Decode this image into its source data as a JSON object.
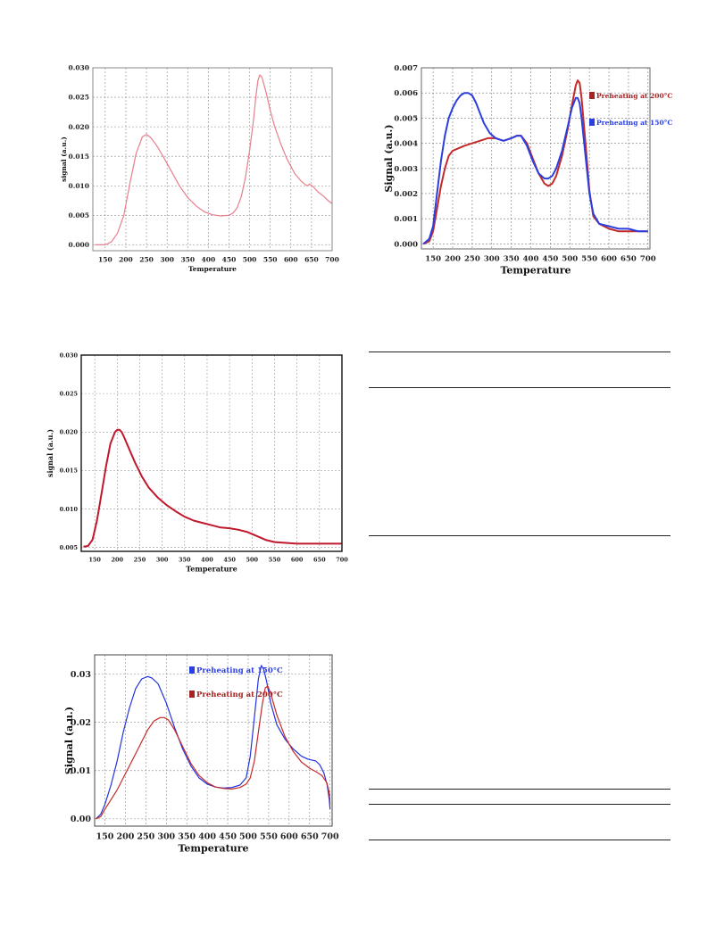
{
  "chart_data": [
    {
      "id": "c1",
      "type": "line",
      "title": "",
      "xlabel": "Temperature",
      "ylabel": "signal (a.u.)",
      "xlim": [
        120,
        700
      ],
      "ylim": [
        -0.001,
        0.03
      ],
      "grid": true,
      "xticks": [
        "150",
        "200",
        "250",
        "300",
        "350",
        "400",
        "450",
        "500",
        "550",
        "600",
        "650",
        "700"
      ],
      "yticks": [
        "0.000",
        "0.005",
        "0.010",
        "0.015",
        "0.020",
        "0.025",
        "0.030"
      ],
      "legend": [],
      "series": [
        {
          "color": "#e87e8c",
          "x": [
            125,
            150,
            165,
            180,
            195,
            210,
            225,
            240,
            250,
            260,
            275,
            290,
            310,
            330,
            350,
            370,
            390,
            410,
            430,
            450,
            460,
            470,
            480,
            490,
            500,
            510,
            515,
            520,
            525,
            530,
            540,
            550,
            560,
            575,
            590,
            610,
            625,
            635,
            640,
            645,
            655,
            665,
            680,
            690,
            700
          ],
          "y": [
            0.0,
            0.0,
            0.0005,
            0.002,
            0.005,
            0.0105,
            0.0155,
            0.0183,
            0.0187,
            0.0182,
            0.0168,
            0.015,
            0.0125,
            0.01,
            0.008,
            0.0066,
            0.0056,
            0.0051,
            0.0049,
            0.005,
            0.0054,
            0.0063,
            0.0082,
            0.0115,
            0.016,
            0.0215,
            0.025,
            0.0278,
            0.0288,
            0.0284,
            0.0258,
            0.0228,
            0.0202,
            0.0172,
            0.0146,
            0.012,
            0.0108,
            0.0102,
            0.01,
            0.0103,
            0.0098,
            0.009,
            0.0082,
            0.0075,
            0.007
          ]
        }
      ]
    },
    {
      "id": "c2",
      "type": "line",
      "title": "",
      "xlabel": "Temperature",
      "ylabel": "Signal (a.u.)",
      "xlim": [
        120,
        705
      ],
      "ylim": [
        -0.0002,
        0.007
      ],
      "grid": true,
      "xticks": [
        "150",
        "200",
        "250",
        "300",
        "350",
        "400",
        "450",
        "500",
        "550",
        "600",
        "650",
        "700"
      ],
      "yticks": [
        "0.000",
        "0.001",
        "0.002",
        "0.003",
        "0.004",
        "0.005",
        "0.006",
        "0.007"
      ],
      "legend": [
        {
          "label": "Preheating at 200°C",
          "color": "#a32424"
        },
        {
          "label": "Preheating at 150°C",
          "color": "#2b3fe0"
        }
      ],
      "series": [
        {
          "name": "Preheating at 200°C",
          "color": "#c42a2a",
          "x": [
            125,
            140,
            150,
            160,
            170,
            180,
            190,
            200,
            215,
            230,
            250,
            270,
            290,
            310,
            330,
            350,
            365,
            375,
            390,
            405,
            420,
            435,
            445,
            455,
            465,
            480,
            495,
            505,
            515,
            520,
            525,
            530,
            540,
            550,
            560,
            575,
            600,
            625,
            650,
            675,
            700
          ],
          "y": [
            0.0,
            0.0001,
            0.0005,
            0.0014,
            0.0023,
            0.003,
            0.0035,
            0.0037,
            0.0038,
            0.0039,
            0.004,
            0.0041,
            0.0042,
            0.0042,
            0.0041,
            0.0042,
            0.0043,
            0.0043,
            0.004,
            0.0034,
            0.0028,
            0.0024,
            0.0023,
            0.0024,
            0.0027,
            0.0035,
            0.0046,
            0.0055,
            0.0063,
            0.0065,
            0.0064,
            0.0058,
            0.004,
            0.0021,
            0.0011,
            0.0008,
            0.0006,
            0.0005,
            0.0005,
            0.0005,
            0.0005
          ]
        },
        {
          "name": "Preheating at 150°C",
          "color": "#2b3fe0",
          "x": [
            125,
            140,
            150,
            160,
            170,
            180,
            190,
            200,
            210,
            220,
            230,
            240,
            250,
            260,
            270,
            280,
            295,
            310,
            330,
            350,
            365,
            375,
            390,
            405,
            420,
            435,
            445,
            455,
            465,
            480,
            495,
            505,
            515,
            520,
            525,
            530,
            540,
            550,
            560,
            575,
            600,
            625,
            650,
            675,
            700
          ],
          "y": [
            0.0,
            0.0002,
            0.0007,
            0.002,
            0.0033,
            0.0043,
            0.005,
            0.0054,
            0.0057,
            0.0059,
            0.006,
            0.006,
            0.0059,
            0.0056,
            0.0052,
            0.0048,
            0.0044,
            0.0042,
            0.0041,
            0.0042,
            0.0043,
            0.0043,
            0.0039,
            0.0033,
            0.0028,
            0.0026,
            0.0026,
            0.0027,
            0.003,
            0.0037,
            0.0047,
            0.0054,
            0.0058,
            0.0058,
            0.0056,
            0.005,
            0.0035,
            0.002,
            0.0012,
            0.0008,
            0.0007,
            0.0006,
            0.0006,
            0.0005,
            0.0005
          ]
        }
      ]
    },
    {
      "id": "c3",
      "type": "line",
      "title": "",
      "xlabel": "Temperature",
      "ylabel": "signal (a.u.)",
      "xlim": [
        120,
        700
      ],
      "ylim": [
        0.0045,
        0.03
      ],
      "grid": true,
      "xticks": [
        "150",
        "200",
        "250",
        "300",
        "350",
        "400",
        "450",
        "500",
        "550",
        "600",
        "650",
        "700"
      ],
      "yticks": [
        "0.005",
        "0.010",
        "0.015",
        "0.020",
        "0.025",
        "0.030"
      ],
      "legend": [],
      "series": [
        {
          "color": "#c0182c",
          "x": [
            125,
            135,
            145,
            155,
            165,
            175,
            185,
            195,
            200,
            205,
            210,
            215,
            225,
            240,
            255,
            270,
            290,
            310,
            330,
            350,
            370,
            390,
            410,
            430,
            450,
            470,
            490,
            510,
            530,
            550,
            575,
            600,
            625,
            650,
            675,
            700
          ],
          "y": [
            0.0051,
            0.0052,
            0.006,
            0.0085,
            0.012,
            0.0155,
            0.0185,
            0.02,
            0.0203,
            0.0203,
            0.02,
            0.0194,
            0.018,
            0.016,
            0.0142,
            0.0128,
            0.0115,
            0.0105,
            0.0097,
            0.009,
            0.0085,
            0.0082,
            0.0079,
            0.0076,
            0.0075,
            0.0073,
            0.007,
            0.0065,
            0.006,
            0.0057,
            0.0056,
            0.0055,
            0.0055,
            0.0055,
            0.0055,
            0.0055
          ]
        }
      ]
    },
    {
      "id": "c4",
      "type": "line",
      "title": "",
      "xlabel": "Temperature",
      "ylabel": "Signal (a.u.)",
      "xlim": [
        125,
        705
      ],
      "ylim": [
        -0.0015,
        0.034
      ],
      "grid": true,
      "xticks": [
        "150",
        "200",
        "250",
        "300",
        "350",
        "400",
        "450",
        "500",
        "550",
        "600",
        "650",
        "700"
      ],
      "yticks": [
        "0.00",
        "0.01",
        "0.02",
        "0.03"
      ],
      "legend": [
        {
          "label": "Preheating at 150°C",
          "color": "#2b3fe0"
        },
        {
          "label": "Preheating at 200°C",
          "color": "#a32424"
        }
      ],
      "series": [
        {
          "name": "Preheating at 150°C",
          "color": "#2233dd",
          "x": [
            128,
            140,
            150,
            165,
            180,
            195,
            210,
            225,
            240,
            255,
            265,
            280,
            300,
            320,
            340,
            360,
            380,
            400,
            420,
            440,
            460,
            480,
            495,
            505,
            515,
            525,
            532,
            538,
            545,
            555,
            570,
            590,
            610,
            630,
            645,
            655,
            665,
            675,
            685,
            693,
            698,
            700
          ],
          "y": [
            0.0,
            0.001,
            0.003,
            0.007,
            0.012,
            0.018,
            0.023,
            0.027,
            0.029,
            0.0295,
            0.0292,
            0.028,
            0.024,
            0.019,
            0.0145,
            0.011,
            0.0085,
            0.0072,
            0.0066,
            0.0064,
            0.0065,
            0.007,
            0.0085,
            0.013,
            0.021,
            0.029,
            0.0318,
            0.031,
            0.0285,
            0.024,
            0.0195,
            0.0165,
            0.0145,
            0.013,
            0.0124,
            0.0122,
            0.012,
            0.0112,
            0.0095,
            0.007,
            0.004,
            0.002
          ]
        },
        {
          "name": "Preheating at 200°C",
          "color": "#c42a2a",
          "x": [
            128,
            140,
            150,
            165,
            180,
            195,
            210,
            225,
            240,
            255,
            270,
            285,
            295,
            305,
            320,
            340,
            360,
            380,
            400,
            420,
            440,
            460,
            480,
            495,
            505,
            515,
            525,
            535,
            542,
            548,
            555,
            570,
            590,
            610,
            630,
            650,
            665,
            680,
            692,
            698,
            700
          ],
          "y": [
            0.0,
            0.0005,
            0.002,
            0.004,
            0.006,
            0.0085,
            0.011,
            0.0135,
            0.016,
            0.0185,
            0.0203,
            0.021,
            0.021,
            0.0205,
            0.0185,
            0.015,
            0.0115,
            0.009,
            0.0075,
            0.0066,
            0.0063,
            0.0062,
            0.0065,
            0.0072,
            0.0085,
            0.012,
            0.018,
            0.024,
            0.0272,
            0.0275,
            0.026,
            0.0215,
            0.017,
            0.014,
            0.0118,
            0.0105,
            0.0098,
            0.009,
            0.0075,
            0.0055,
            0.003
          ]
        }
      ]
    }
  ]
}
